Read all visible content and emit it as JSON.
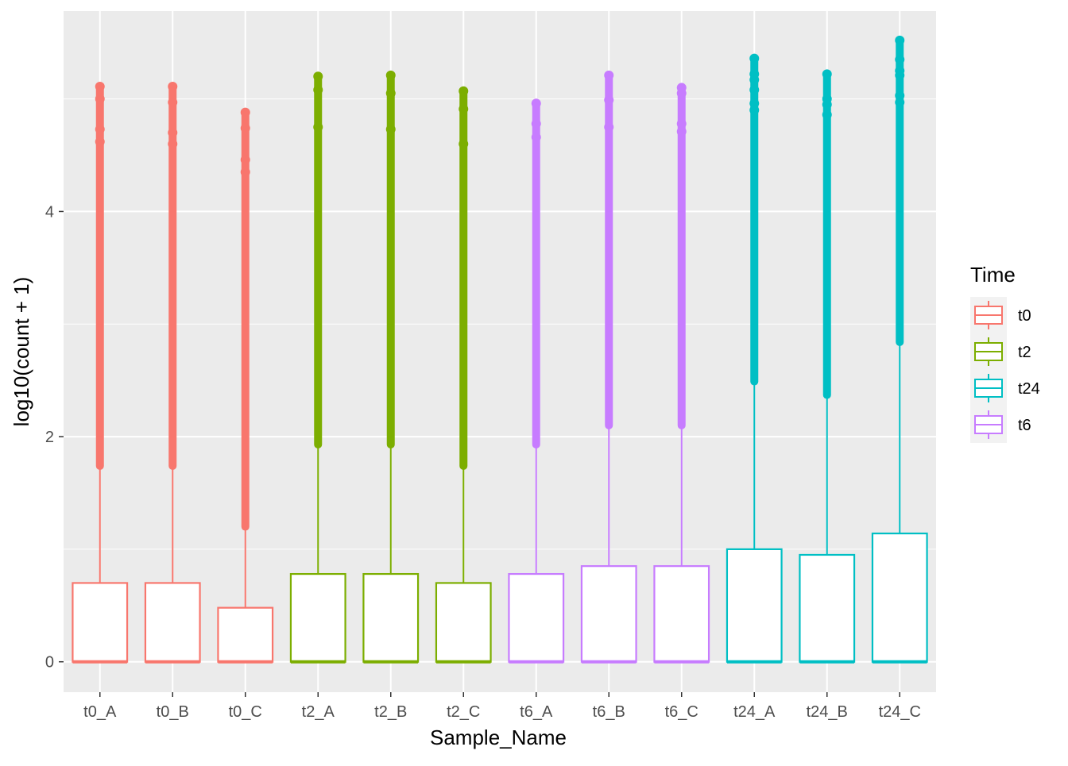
{
  "chart_data": {
    "type": "boxplot",
    "title": "",
    "xlabel": "Sample_Name",
    "ylabel": "log10(count + 1)",
    "ylim": [
      -0.27,
      5.78
    ],
    "y_ticks": [
      0,
      2,
      4
    ],
    "y_tick_labels": [
      "0",
      "2",
      "4"
    ],
    "grid": true,
    "legend": {
      "title": "Time",
      "placement": "right",
      "entries": [
        {
          "label": "t0",
          "color": "#F8766D"
        },
        {
          "label": "t2",
          "color": "#7CAE00"
        },
        {
          "label": "t24",
          "color": "#00BFC4"
        },
        {
          "label": "t6",
          "color": "#C77CFF"
        }
      ]
    },
    "categories": [
      "t0_A",
      "t0_B",
      "t0_C",
      "t2_A",
      "t2_B",
      "t2_C",
      "t6_A",
      "t6_B",
      "t6_C",
      "t24_A",
      "t24_B",
      "t24_C"
    ],
    "series": [
      {
        "name": "t0_A",
        "group": "t0",
        "min": 0,
        "q1": 0,
        "median": 0,
        "q3": 0.7,
        "whisker_high": 1.74,
        "outlier_min": 1.74,
        "outlier_max": 5.11,
        "sparse_outliers": [
          5.11,
          5.0,
          4.73,
          4.62
        ]
      },
      {
        "name": "t0_B",
        "group": "t0",
        "min": 0,
        "q1": 0,
        "median": 0,
        "q3": 0.7,
        "whisker_high": 1.74,
        "outlier_min": 1.74,
        "outlier_max": 5.11,
        "sparse_outliers": [
          5.11,
          4.97,
          4.7,
          4.6
        ]
      },
      {
        "name": "t0_C",
        "group": "t0",
        "min": 0,
        "q1": 0,
        "median": 0,
        "q3": 0.48,
        "whisker_high": 1.2,
        "outlier_min": 1.2,
        "outlier_max": 4.88,
        "sparse_outliers": [
          4.88,
          4.74,
          4.46,
          4.35
        ]
      },
      {
        "name": "t2_A",
        "group": "t2",
        "min": 0,
        "q1": 0,
        "median": 0,
        "q3": 0.78,
        "whisker_high": 1.93,
        "outlier_min": 1.93,
        "outlier_max": 5.2,
        "sparse_outliers": [
          5.2,
          5.08,
          4.75
        ]
      },
      {
        "name": "t2_B",
        "group": "t2",
        "min": 0,
        "q1": 0,
        "median": 0,
        "q3": 0.78,
        "whisker_high": 1.93,
        "outlier_min": 1.93,
        "outlier_max": 5.21,
        "sparse_outliers": [
          5.21,
          5.05,
          4.73
        ]
      },
      {
        "name": "t2_C",
        "group": "t2",
        "min": 0,
        "q1": 0,
        "median": 0,
        "q3": 0.7,
        "whisker_high": 1.74,
        "outlier_min": 1.74,
        "outlier_max": 5.07,
        "sparse_outliers": [
          5.07,
          4.91,
          4.6
        ]
      },
      {
        "name": "t6_A",
        "group": "t6",
        "min": 0,
        "q1": 0,
        "median": 0,
        "q3": 0.78,
        "whisker_high": 1.93,
        "outlier_min": 1.93,
        "outlier_max": 4.96,
        "sparse_outliers": [
          4.96,
          4.78,
          4.66
        ]
      },
      {
        "name": "t6_B",
        "group": "t6",
        "min": 0,
        "q1": 0,
        "median": 0,
        "q3": 0.85,
        "whisker_high": 2.1,
        "outlier_min": 2.1,
        "outlier_max": 5.21,
        "sparse_outliers": [
          5.21,
          4.99,
          4.75
        ]
      },
      {
        "name": "t6_C",
        "group": "t6",
        "min": 0,
        "q1": 0,
        "median": 0,
        "q3": 0.85,
        "whisker_high": 2.1,
        "outlier_min": 2.1,
        "outlier_max": 5.1,
        "sparse_outliers": [
          5.1,
          5.05,
          4.78,
          4.71
        ]
      },
      {
        "name": "t24_A",
        "group": "t24",
        "min": 0,
        "q1": 0,
        "median": 0,
        "q3": 1.0,
        "whisker_high": 2.49,
        "outlier_min": 2.49,
        "outlier_max": 5.36,
        "sparse_outliers": [
          5.36,
          5.22,
          5.17,
          5.08,
          4.96,
          4.9
        ]
      },
      {
        "name": "t24_B",
        "group": "t24",
        "min": 0,
        "q1": 0,
        "median": 0,
        "q3": 0.95,
        "whisker_high": 2.37,
        "outlier_min": 2.37,
        "outlier_max": 5.22,
        "sparse_outliers": [
          5.22,
          5.0,
          4.95,
          4.86
        ]
      },
      {
        "name": "t24_C",
        "group": "t24",
        "min": 0,
        "q1": 0,
        "median": 0,
        "q3": 1.14,
        "whisker_high": 2.84,
        "outlier_min": 2.84,
        "outlier_max": 5.52,
        "sparse_outliers": [
          5.52,
          5.35,
          5.25,
          5.21,
          5.03,
          4.97
        ]
      }
    ]
  }
}
